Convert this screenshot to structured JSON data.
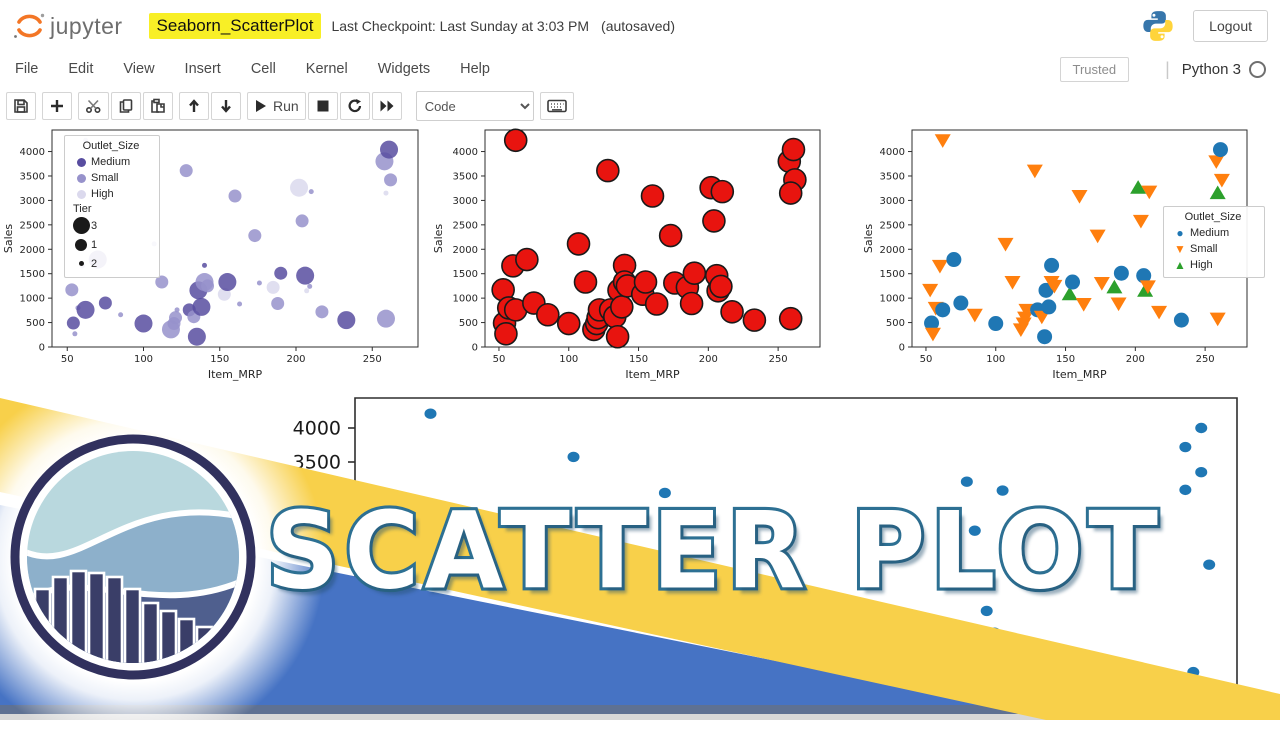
{
  "header": {
    "app_name": "jupyter",
    "title": "Seaborn_ScatterPlot",
    "checkpoint": "Last Checkpoint: Last Sunday at 3:03 PM",
    "autosaved": "(autosaved)",
    "logout_label": "Logout"
  },
  "menubar": {
    "items": [
      "File",
      "Edit",
      "View",
      "Insert",
      "Cell",
      "Kernel",
      "Widgets",
      "Help"
    ],
    "trusted_label": "Trusted",
    "kernel_name": "Python 3"
  },
  "toolbar": {
    "groups": [
      [
        {
          "icon": "save-icon"
        }
      ],
      [
        {
          "icon": "add-cell-icon"
        }
      ],
      [
        {
          "icon": "cut-icon"
        },
        {
          "icon": "copy-icon"
        },
        {
          "icon": "paste-icon"
        }
      ],
      [
        {
          "icon": "move-up-icon"
        },
        {
          "icon": "move-down-icon"
        }
      ],
      [
        {
          "icon": "run-icon",
          "label": "Run"
        },
        {
          "icon": "stop-icon"
        },
        {
          "icon": "restart-icon"
        },
        {
          "icon": "fast-forward-icon"
        }
      ],
      [
        {
          "type": "select",
          "value": "Code"
        }
      ],
      [
        {
          "icon": "keyboard-icon"
        }
      ]
    ]
  },
  "banner": {
    "title": "SCATTER PLOT",
    "colors": {
      "yellow": "#f8d04a",
      "blue": "#4673c4",
      "strip_slate": "#5e7193",
      "strip_gray": "#d8d8d8",
      "text_fill": "#ffffff",
      "text_outline": "#2d7093",
      "logo_navy": "#31315e"
    }
  },
  "chart_data": {
    "shared_points": [
      {
        "x": 53,
        "y": 1170,
        "outlet": "Small",
        "tier": 1
      },
      {
        "x": 54,
        "y": 490,
        "outlet": "Medium",
        "tier": 1
      },
      {
        "x": 55,
        "y": 270,
        "outlet": "Small",
        "tier": 2
      },
      {
        "x": 57,
        "y": 800,
        "outlet": "Small",
        "tier": 2
      },
      {
        "x": 60,
        "y": 1660,
        "outlet": "Small",
        "tier": 2
      },
      {
        "x": 62,
        "y": 4230,
        "outlet": "Small",
        "tier": 2
      },
      {
        "x": 62,
        "y": 760,
        "outlet": "Medium",
        "tier": 3
      },
      {
        "x": 70,
        "y": 1790,
        "outlet": "Medium",
        "tier": 3
      },
      {
        "x": 75,
        "y": 900,
        "outlet": "Medium",
        "tier": 1
      },
      {
        "x": 85,
        "y": 660,
        "outlet": "Small",
        "tier": 2
      },
      {
        "x": 100,
        "y": 480,
        "outlet": "Medium",
        "tier": 3
      },
      {
        "x": 107,
        "y": 2110,
        "outlet": "Small",
        "tier": 2
      },
      {
        "x": 112,
        "y": 1330,
        "outlet": "Small",
        "tier": 1
      },
      {
        "x": 118,
        "y": 360,
        "outlet": "Small",
        "tier": 3
      },
      {
        "x": 120,
        "y": 480,
        "outlet": "Small",
        "tier": 1
      },
      {
        "x": 121,
        "y": 600,
        "outlet": "Small",
        "tier": 1
      },
      {
        "x": 122,
        "y": 760,
        "outlet": "Small",
        "tier": 2
      },
      {
        "x": 128,
        "y": 3610,
        "outlet": "Small",
        "tier": 1
      },
      {
        "x": 130,
        "y": 760,
        "outlet": "Medium",
        "tier": 1
      },
      {
        "x": 133,
        "y": 620,
        "outlet": "Small",
        "tier": 1
      },
      {
        "x": 135,
        "y": 210,
        "outlet": "Medium",
        "tier": 3
      },
      {
        "x": 136,
        "y": 1160,
        "outlet": "Medium",
        "tier": 3
      },
      {
        "x": 138,
        "y": 820,
        "outlet": "Medium",
        "tier": 3
      },
      {
        "x": 140,
        "y": 1670,
        "outlet": "Medium",
        "tier": 2
      },
      {
        "x": 140,
        "y": 1330,
        "outlet": "Small",
        "tier": 3
      },
      {
        "x": 142,
        "y": 1250,
        "outlet": "Small",
        "tier": 1
      },
      {
        "x": 153,
        "y": 1080,
        "outlet": "High",
        "tier": 1
      },
      {
        "x": 155,
        "y": 1330,
        "outlet": "Medium",
        "tier": 3
      },
      {
        "x": 160,
        "y": 3090,
        "outlet": "Small",
        "tier": 1
      },
      {
        "x": 163,
        "y": 880,
        "outlet": "Small",
        "tier": 2
      },
      {
        "x": 173,
        "y": 2280,
        "outlet": "Small",
        "tier": 1
      },
      {
        "x": 176,
        "y": 1310,
        "outlet": "Small",
        "tier": 2
      },
      {
        "x": 185,
        "y": 1220,
        "outlet": "High",
        "tier": 1
      },
      {
        "x": 188,
        "y": 890,
        "outlet": "Small",
        "tier": 1
      },
      {
        "x": 190,
        "y": 1510,
        "outlet": "Medium",
        "tier": 1
      },
      {
        "x": 202,
        "y": 3260,
        "outlet": "High",
        "tier": 3
      },
      {
        "x": 204,
        "y": 2580,
        "outlet": "Small",
        "tier": 1
      },
      {
        "x": 206,
        "y": 1460,
        "outlet": "Medium",
        "tier": 3
      },
      {
        "x": 207,
        "y": 1150,
        "outlet": "High",
        "tier": 2
      },
      {
        "x": 209,
        "y": 1240,
        "outlet": "Small",
        "tier": 2
      },
      {
        "x": 210,
        "y": 3180,
        "outlet": "Small",
        "tier": 2
      },
      {
        "x": 217,
        "y": 720,
        "outlet": "Small",
        "tier": 1
      },
      {
        "x": 233,
        "y": 550,
        "outlet": "Medium",
        "tier": 3
      },
      {
        "x": 258,
        "y": 3800,
        "outlet": "Small",
        "tier": 3
      },
      {
        "x": 261,
        "y": 4040,
        "outlet": "Medium",
        "tier": 3
      },
      {
        "x": 262,
        "y": 3420,
        "outlet": "Small",
        "tier": 1
      },
      {
        "x": 259,
        "y": 3150,
        "outlet": "High",
        "tier": 2
      },
      {
        "x": 259,
        "y": 580,
        "outlet": "Small",
        "tier": 3
      }
    ],
    "charts": [
      {
        "id": "bubble",
        "type": "scatter",
        "xlabel": "Item_MRP",
        "ylabel": "Sales",
        "xlim": [
          40,
          280
        ],
        "ylim": [
          0,
          4400
        ],
        "xticks": [
          50,
          100,
          150,
          200,
          250
        ],
        "yticks": [
          0,
          500,
          1000,
          1500,
          2000,
          2500,
          3000,
          3500,
          4000
        ],
        "encoding": {
          "hue": "Outlet_Size",
          "size": "Tier"
        },
        "palette": {
          "Medium": "#584da0",
          "Small": "#9792cb",
          "High": "#dbd9ed"
        },
        "size_map": {
          "3": 9,
          "1": 6.5,
          "2": 2.5
        },
        "legend": {
          "title": "Outlet_Size",
          "hue_items": [
            "Medium",
            "Small",
            "High"
          ],
          "size_title": "Tier",
          "size_items": [
            "3",
            "1",
            "2"
          ]
        }
      },
      {
        "id": "plain-red",
        "type": "scatter",
        "xlabel": "Item_MRP",
        "ylabel": "Sales",
        "xlim": [
          40,
          280
        ],
        "ylim": [
          0,
          4400
        ],
        "xticks": [
          50,
          100,
          150,
          200,
          250
        ],
        "yticks": [
          0,
          500,
          1000,
          1500,
          2000,
          2500,
          3000,
          3500,
          4000
        ],
        "marker_color": "#e8140f",
        "edge_color": "#1a1a1a",
        "radius": 11
      },
      {
        "id": "hue-markers",
        "type": "scatter",
        "xlabel": "Item_MRP",
        "ylabel": "Sales",
        "xlim": [
          40,
          280
        ],
        "ylim": [
          0,
          4400
        ],
        "xticks": [
          50,
          100,
          150,
          200,
          250
        ],
        "yticks": [
          0,
          500,
          1000,
          1500,
          2000,
          2500,
          3000,
          3500,
          4000
        ],
        "encoding": {
          "hue": "Outlet_Size",
          "style": "Outlet_Size"
        },
        "palette": {
          "Medium": "#1f77b4",
          "Small": "#ff7f0e",
          "High": "#2ca02c"
        },
        "markers": {
          "Medium": "circle",
          "Small": "triangle-down",
          "High": "triangle-up"
        },
        "legend": {
          "title": "Outlet_Size",
          "hue_items": [
            "Medium",
            "Small",
            "High"
          ]
        }
      },
      {
        "id": "partial-bottom",
        "type": "scatter",
        "visible_yticks": [
          4000,
          3500
        ],
        "marker_color": "#1f77b4",
        "points": [
          {
            "x": 65,
            "y": 4210
          },
          {
            "x": 101,
            "y": 3575
          },
          {
            "x": 124,
            "y": 3045
          },
          {
            "x": 200,
            "y": 3210
          },
          {
            "x": 209,
            "y": 3080
          },
          {
            "x": 202,
            "y": 2490
          },
          {
            "x": 259,
            "y": 4000
          },
          {
            "x": 255,
            "y": 3720
          },
          {
            "x": 259,
            "y": 3350
          },
          {
            "x": 255,
            "y": 3090
          },
          {
            "x": 184,
            "y": 1150
          },
          {
            "x": 205,
            "y": 1310
          },
          {
            "x": 207,
            "y": 990
          },
          {
            "x": 231,
            "y": 370
          },
          {
            "x": 257,
            "y": 410
          },
          {
            "x": 261,
            "y": 1990
          }
        ]
      }
    ]
  }
}
